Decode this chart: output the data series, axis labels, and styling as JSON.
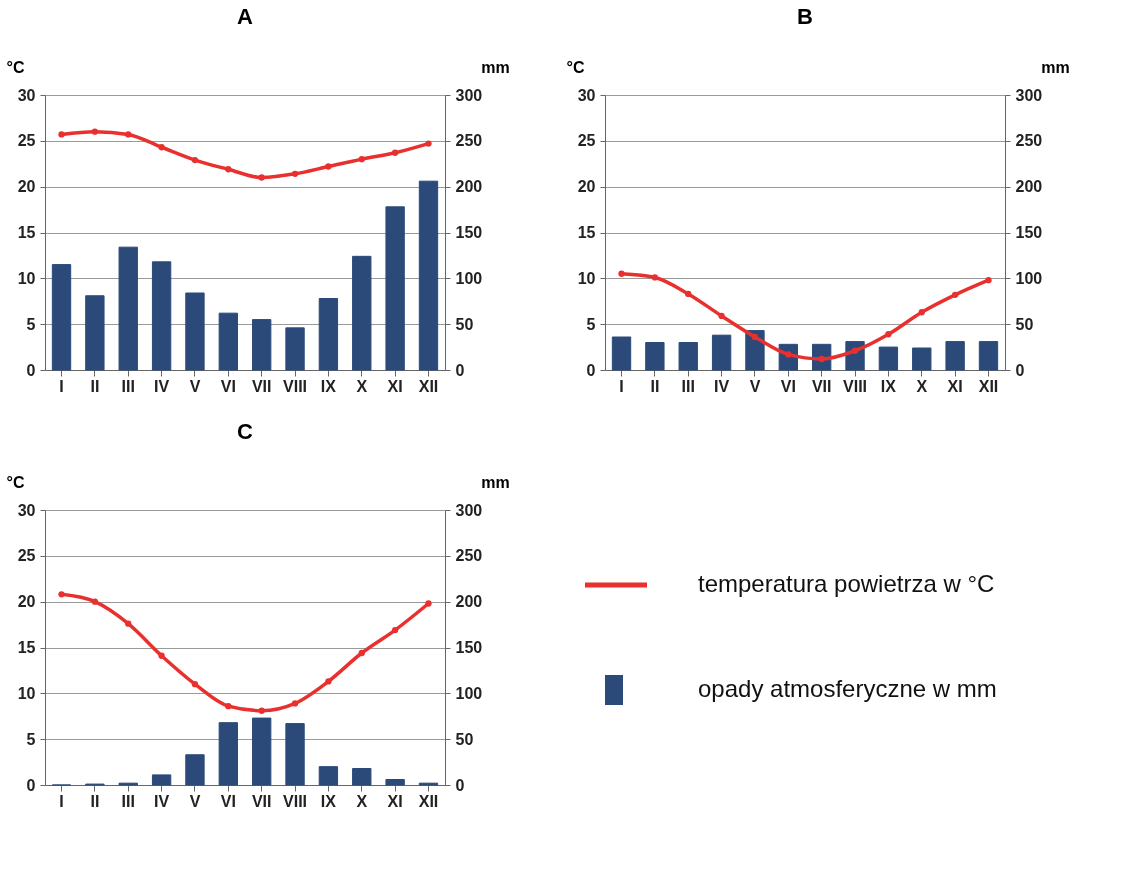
{
  "chart_data": [
    {
      "type": "bar",
      "title": "A",
      "ylabel": "°C",
      "y2label": "mm",
      "categories": [
        "I",
        "II",
        "III",
        "IV",
        "V",
        "VI",
        "VII",
        "VIII",
        "IX",
        "X",
        "XI",
        "XII"
      ],
      "ylim": [
        0,
        30
      ],
      "yticks": [
        0,
        5,
        10,
        15,
        20,
        25,
        30
      ],
      "y2lim": [
        0,
        300
      ],
      "y2ticks": [
        0,
        50,
        100,
        150,
        200,
        250,
        300
      ],
      "grid": "y",
      "marker": "circle",
      "series": [
        {
          "type": "line",
          "axis": "y",
          "color": "#e8312f",
          "values": [
            25.7,
            26,
            25.7,
            24.3,
            22.9,
            21.9,
            21,
            21.4,
            22.2,
            23,
            23.7,
            24.7
          ]
        },
        {
          "axis": "y2",
          "color": "#2b4a7a",
          "values": [
            115,
            81,
            134,
            118,
            84,
            62,
            55,
            46,
            78,
            124,
            178,
            206
          ]
        }
      ]
    },
    {
      "type": "bar",
      "title": "B",
      "ylabel": "°C",
      "y2label": "mm",
      "categories": [
        "I",
        "II",
        "III",
        "IV",
        "V",
        "VI",
        "VII",
        "VIII",
        "IX",
        "X",
        "XI",
        "XII"
      ],
      "ylim": [
        0,
        30
      ],
      "yticks": [
        0,
        5,
        10,
        15,
        20,
        25,
        30
      ],
      "y2lim": [
        0,
        300
      ],
      "y2ticks": [
        0,
        50,
        100,
        150,
        200,
        250,
        300
      ],
      "grid": "y",
      "marker": "circle",
      "series": [
        {
          "type": "line",
          "axis": "y",
          "color": "#e8312f",
          "values": [
            10.5,
            10.1,
            8.3,
            5.9,
            3.6,
            1.7,
            1.2,
            2.1,
            3.9,
            6.3,
            8.2,
            9.8
          ]
        },
        {
          "axis": "y2",
          "color": "#2b4a7a",
          "values": [
            36,
            30,
            30,
            38,
            43,
            28,
            28,
            31,
            25,
            24,
            31,
            31
          ]
        }
      ]
    },
    {
      "type": "bar",
      "title": "C",
      "ylabel": "°C",
      "y2label": "mm",
      "categories": [
        "I",
        "II",
        "III",
        "IV",
        "V",
        "VI",
        "VII",
        "VIII",
        "IX",
        "X",
        "XI",
        "XII"
      ],
      "ylim": [
        0,
        30
      ],
      "yticks": [
        0,
        5,
        10,
        15,
        20,
        25,
        30
      ],
      "y2lim": [
        0,
        300
      ],
      "y2ticks": [
        0,
        50,
        100,
        150,
        200,
        250,
        300
      ],
      "grid": "y",
      "marker": "circle",
      "legend": "right",
      "series": [
        {
          "type": "line",
          "axis": "y",
          "name": "temperatura powietrza w °C",
          "color": "#e8312f",
          "values": [
            20.8,
            20,
            17.6,
            14.1,
            11,
            8.6,
            8.1,
            8.9,
            11.3,
            14.4,
            16.9,
            19.8
          ]
        },
        {
          "axis": "y2",
          "name": "opady atmosferyczne w mm",
          "color": "#2b4a7a",
          "values": [
            0,
            1,
            2,
            11,
            33,
            68,
            73,
            67,
            20,
            18,
            6,
            2
          ]
        }
      ]
    }
  ]
}
